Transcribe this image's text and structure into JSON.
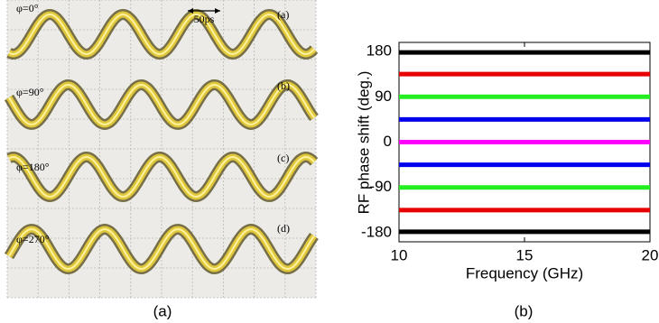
{
  "oscilloscope": {
    "scale_label": "50ps",
    "traces": [
      {
        "phase_label": "φ=0°",
        "panel_label": "(a)"
      },
      {
        "phase_label": "φ=90°",
        "panel_label": "(b)"
      },
      {
        "phase_label": "φ=180°",
        "panel_label": "(c)"
      },
      {
        "phase_label": "φ=270°",
        "panel_label": "(d)"
      }
    ]
  },
  "chart_data": {
    "type": "line",
    "y_label": "RF phase shift (deg.)",
    "x_label": "Frequency (GHz)",
    "x": [
      10,
      20
    ],
    "series": [
      {
        "color": "#000000",
        "values": [
          178,
          178
        ]
      },
      {
        "color": "#e60000",
        "values": [
          135,
          135
        ]
      },
      {
        "color": "#22ee22",
        "values": [
          90,
          90
        ]
      },
      {
        "color": "#0000ee",
        "values": [
          45,
          45
        ]
      },
      {
        "color": "#ff00ff",
        "values": [
          0,
          0
        ]
      },
      {
        "color": "#0000ee",
        "values": [
          -45,
          -45
        ]
      },
      {
        "color": "#22ee22",
        "values": [
          -90,
          -90
        ]
      },
      {
        "color": "#e60000",
        "values": [
          -135,
          -135
        ]
      },
      {
        "color": "#000000",
        "values": [
          -178,
          -178
        ]
      }
    ],
    "xlim": [
      10,
      20
    ],
    "xticks": [
      10,
      15,
      20
    ],
    "ylim": [
      -198,
      198
    ],
    "yticks": [
      180,
      90,
      0,
      -90,
      -180
    ]
  },
  "captions": [
    "(a)",
    "(b)"
  ]
}
